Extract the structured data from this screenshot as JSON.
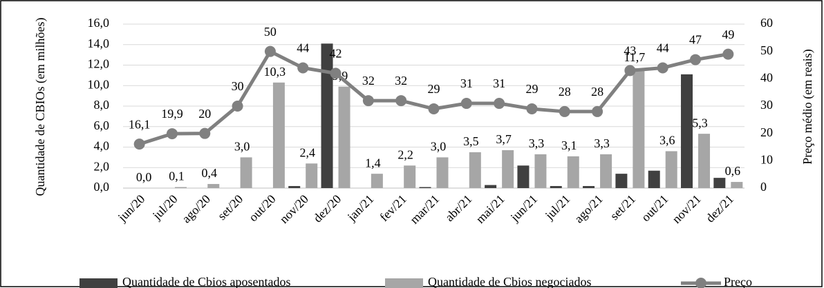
{
  "chart_data": {
    "type": "bar",
    "categories": [
      "jun/20",
      "jul/20",
      "ago/20",
      "set/20",
      "out/20",
      "nov/20",
      "dez/20",
      "jan/21",
      "fev/21",
      "mar/21",
      "abr/21",
      "mai/21",
      "jun/21",
      "jul/21",
      "ago/21",
      "set/21",
      "out/21",
      "nov/21",
      "dez/21"
    ],
    "series": [
      {
        "name": "Quantidade de Cbios aposentados",
        "color": "#404040",
        "type": "bar",
        "values": [
          0,
          0,
          0,
          0,
          0,
          0.2,
          14.1,
          0,
          0,
          0.1,
          0,
          0.3,
          2.2,
          0.2,
          0.2,
          1.4,
          1.7,
          11.1,
          1.0
        ]
      },
      {
        "name": "Quantidade de Cbios negociados",
        "color": "#a6a6a6",
        "type": "bar",
        "values": [
          0.0,
          0.1,
          0.4,
          3.0,
          10.3,
          2.4,
          9.9,
          1.4,
          2.2,
          3.0,
          3.5,
          3.7,
          3.3,
          3.1,
          3.3,
          11.7,
          3.6,
          5.3,
          0.6
        ],
        "value_labels": [
          "0,0",
          "0,1",
          "0,4",
          "3,0",
          "10,3",
          "2,4",
          "9,9",
          "1,4",
          "2,2",
          "3,0",
          "3,5",
          "3,7",
          "3,3",
          "3,1",
          "3,3",
          "11,7",
          "3,6",
          "5,3",
          "0,6"
        ]
      },
      {
        "name": "Preço",
        "color": "#808080",
        "type": "line",
        "axis": "y2",
        "values": [
          16.1,
          19.9,
          20,
          30,
          50,
          44,
          42,
          32,
          32,
          29,
          31,
          31,
          29,
          28,
          28,
          43,
          44,
          47,
          49
        ],
        "value_labels": [
          "16,1",
          "19,9",
          "20",
          "30",
          "50",
          "44",
          "42",
          "32",
          "32",
          "29",
          "31",
          "31",
          "29",
          "28",
          "28",
          "43",
          "44",
          "47",
          "49"
        ]
      }
    ],
    "y_label": "Quantidade de CBIOs (em milhões)",
    "y2_label": "Preço médio (em reais)",
    "ylim": [
      0,
      16
    ],
    "yticks": [
      {
        "value": 0,
        "label": "0,0"
      },
      {
        "value": 2,
        "label": "2,0"
      },
      {
        "value": 4,
        "label": "4,0"
      },
      {
        "value": 6,
        "label": "6,0"
      },
      {
        "value": 8,
        "label": "8,0"
      },
      {
        "value": 10,
        "label": "10,0"
      },
      {
        "value": 12,
        "label": "12,0"
      },
      {
        "value": 14,
        "label": "14,0"
      },
      {
        "value": 16,
        "label": "16,0"
      }
    ],
    "y2lim": [
      0,
      60
    ],
    "y2ticks": [
      0,
      10,
      20,
      30,
      40,
      50,
      60
    ],
    "grid": true,
    "legend": "bottom"
  }
}
